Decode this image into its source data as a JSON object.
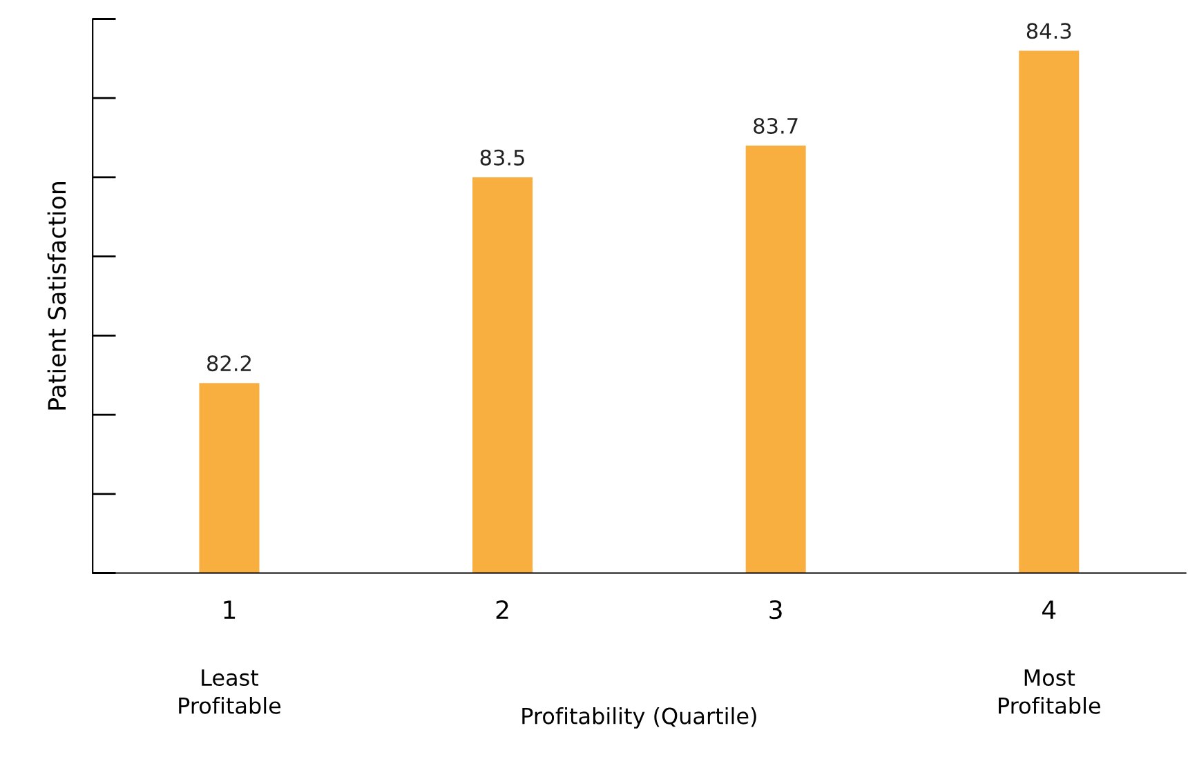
{
  "chart_data": {
    "type": "bar",
    "ylabel": "Patient Satisfaction",
    "annotations": [
      "Least\nProfitable",
      "Most\nProfitable",
      "Profitability (Quartile)"
    ],
    "categories": [
      "1",
      "2",
      "3",
      "4"
    ],
    "values": [
      82.2,
      83.5,
      83.7,
      84.3
    ],
    "color": "#f9ae40",
    "data_labels": true,
    "ylim": [
      81,
      84.5
    ],
    "grid": false
  }
}
